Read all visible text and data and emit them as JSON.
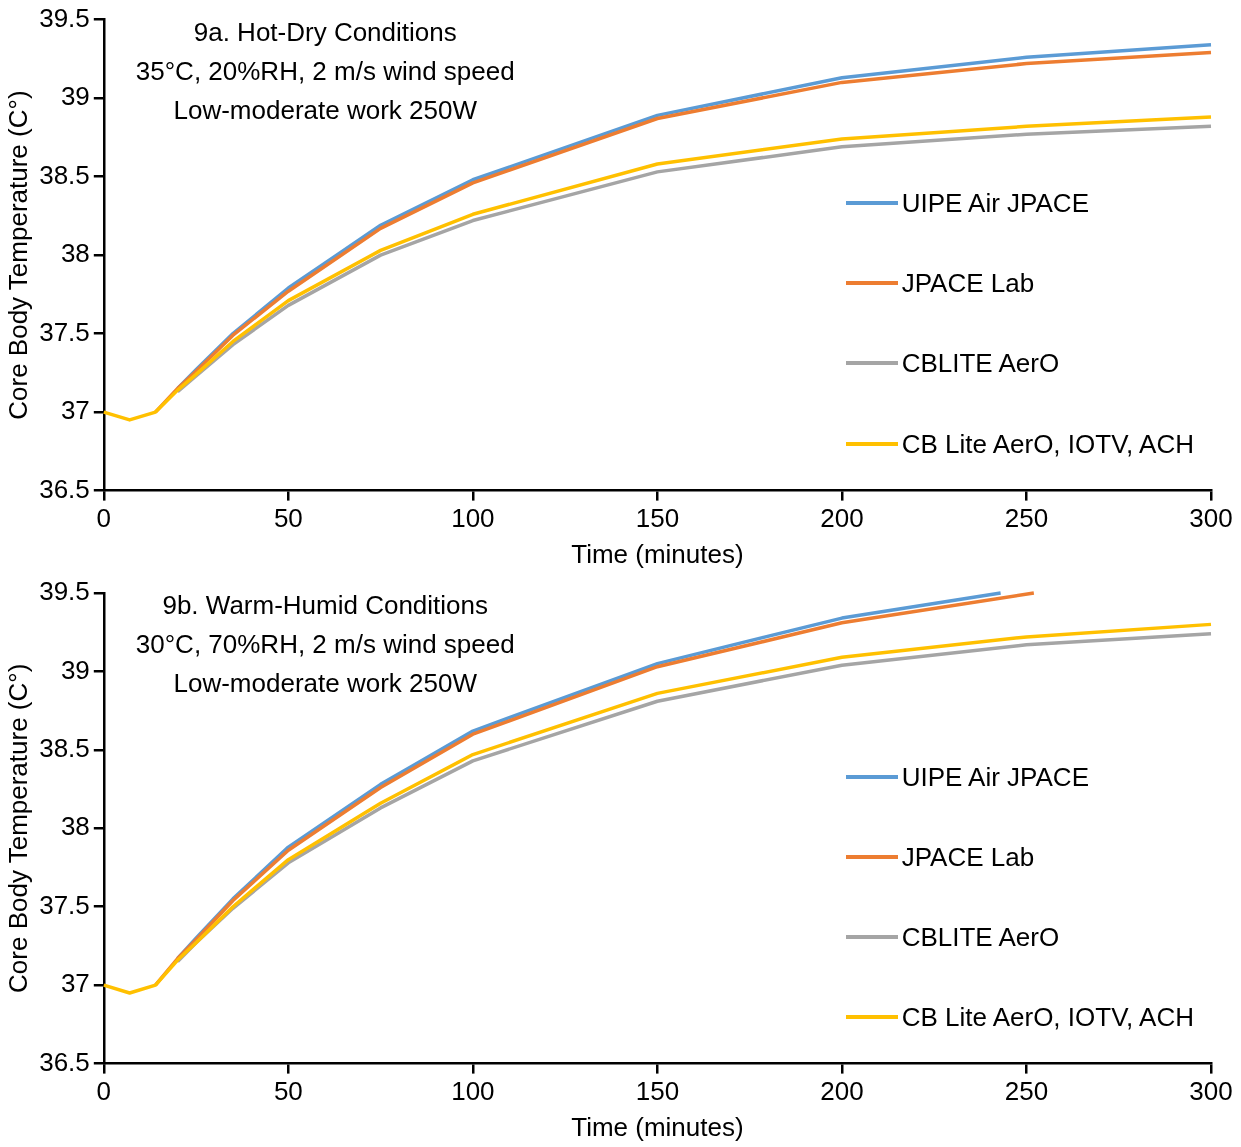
{
  "chart_data": [
    {
      "type": "line",
      "xlabel": "Time (minutes)",
      "ylabel": "Core Body Temperature (C°)",
      "annotations": [
        "9a. Hot-Dry Conditions",
        "35°C, 20%RH, 2 m/s wind speed",
        "Low-moderate work 250W"
      ],
      "x": [
        0,
        7,
        14,
        20,
        25,
        35,
        50,
        75,
        100,
        150,
        200,
        250,
        300
      ],
      "series": [
        {
          "name": "UIPE Air JPACE",
          "color": "#5b9bd5",
          "values": [
            null,
            null,
            null,
            37.15,
            37.27,
            37.5,
            37.79,
            38.19,
            38.48,
            38.89,
            39.13,
            39.26,
            39.34
          ]
        },
        {
          "name": "JPACE Lab",
          "color": "#ed7d31",
          "values": [
            null,
            null,
            37,
            37.15,
            37.26,
            37.49,
            37.77,
            38.17,
            38.46,
            38.87,
            39.1,
            39.22,
            39.29
          ]
        },
        {
          "name": "CBLITE AerO",
          "color": "#a5a5a5",
          "values": [
            null,
            null,
            null,
            37.13,
            37.23,
            37.43,
            37.68,
            38.0,
            38.22,
            38.53,
            38.69,
            38.77,
            38.82
          ]
        },
        {
          "name": "CB Lite AerO, IOTV, ACH",
          "color": "#ffc000",
          "values": [
            37,
            36.95,
            37,
            37.14,
            37.24,
            37.45,
            37.71,
            38.03,
            38.26,
            38.58,
            38.74,
            38.82,
            38.88
          ]
        }
      ],
      "xlim": [
        0,
        300
      ],
      "xticks": [
        0,
        50,
        100,
        150,
        200,
        250,
        300
      ],
      "ylim": [
        36.5,
        39.5
      ],
      "yticks": [
        36.5,
        37,
        37.5,
        38,
        38.5,
        39,
        39.5
      ],
      "grid": false,
      "legend": "right",
      "marker": "none",
      "line_style": "solid"
    },
    {
      "type": "line",
      "xlabel": "Time (minutes)",
      "ylabel": "Core Body Temperature (C°)",
      "annotations": [
        "9b. Warm-Humid Conditions",
        "30°C, 70%RH, 2 m/s wind speed",
        "Low-moderate work 250W"
      ],
      "x": [
        0,
        7,
        14,
        20,
        25,
        35,
        50,
        75,
        100,
        150,
        200,
        250,
        300
      ],
      "series": [
        {
          "name": "UIPE Air JPACE",
          "color": "#5b9bd5",
          "x": [
            20,
            25,
            35,
            50,
            75,
            100,
            150,
            200,
            243
          ],
          "values": [
            37.17,
            37.3,
            37.55,
            37.88,
            38.28,
            38.62,
            39.05,
            39.34,
            39.5
          ]
        },
        {
          "name": "JPACE Lab",
          "color": "#ed7d31",
          "x": [
            14,
            20,
            25,
            35,
            50,
            75,
            100,
            150,
            200,
            252
          ],
          "values": [
            37,
            37.17,
            37.29,
            37.54,
            37.86,
            38.26,
            38.6,
            39.03,
            39.31,
            39.5
          ]
        },
        {
          "name": "CBLITE AerO",
          "color": "#a5a5a5",
          "values": [
            null,
            null,
            null,
            37.15,
            37.27,
            37.49,
            37.78,
            38.13,
            38.43,
            38.81,
            39.04,
            39.17,
            39.24
          ]
        },
        {
          "name": "CB Lite AerO, IOTV, ACH",
          "color": "#ffc000",
          "values": [
            37,
            36.95,
            37,
            37.16,
            37.27,
            37.5,
            37.8,
            38.16,
            38.47,
            38.86,
            39.09,
            39.22,
            39.3
          ]
        }
      ],
      "xlim": [
        0,
        300
      ],
      "xticks": [
        0,
        50,
        100,
        150,
        200,
        250,
        300
      ],
      "ylim": [
        36.5,
        39.5
      ],
      "yticks": [
        36.5,
        37,
        37.5,
        38,
        38.5,
        39,
        39.5
      ],
      "grid": false,
      "legend": "right",
      "marker": "none",
      "line_style": "solid"
    }
  ]
}
